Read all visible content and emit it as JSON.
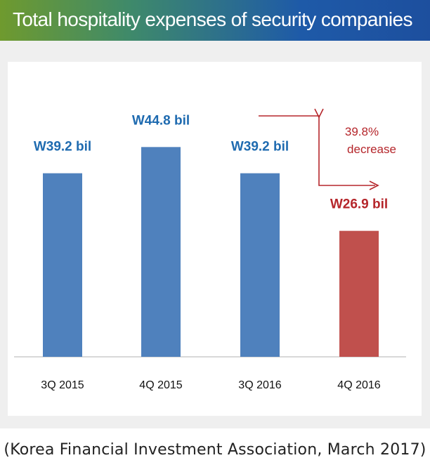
{
  "chart_data": {
    "type": "bar",
    "title": "Total hospitality expenses of security companies",
    "categories": [
      "3Q 2015",
      "4Q 2015",
      "3Q 2016",
      "4Q 2016"
    ],
    "values": [
      39.2,
      44.8,
      39.2,
      26.9
    ],
    "data_labels": [
      "W39.2 bil",
      "W44.8 bil",
      "W39.2 bil",
      "W26.9 bil"
    ],
    "ylim": [
      0,
      60
    ],
    "grid": false,
    "colors": {
      "bar": "#4f81bd",
      "highlight_bar": "#c0504d",
      "label": "#1f6bb0",
      "highlight_label": "#b5262b",
      "annotation": "#b5262b"
    },
    "highlight_index": 3,
    "annotation": {
      "line1": "39.8%",
      "line2": "decrease"
    }
  },
  "source": "(Korea Financial Investment Association, March 2017)"
}
